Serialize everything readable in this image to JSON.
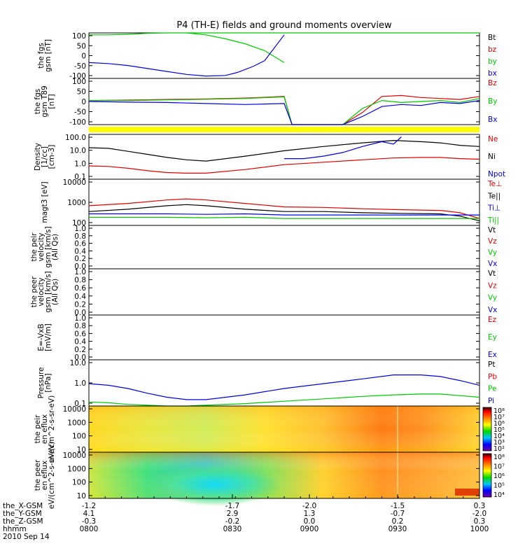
{
  "title": "P4 (TH-E) fields and ground moments overview",
  "colors": {
    "black": "#000000",
    "red": "#e00000",
    "green": "#00c800",
    "blue": "#0000e0"
  },
  "colorbar_ticks": {
    "eflux_i": [
      "10⁸",
      "10⁷",
      "10⁶",
      "10⁵",
      "10⁴",
      "10³",
      "10²"
    ],
    "eflux_e": [
      "10⁸",
      "10⁷",
      "10⁶",
      "10⁵",
      "10⁴"
    ]
  },
  "x_ticks": {
    "rows": [
      {
        "label": "the_X-GSM",
        "values": [
          "-1.2",
          "-1.7",
          "-2.0",
          "-1.5",
          "0.3"
        ]
      },
      {
        "label": "the_Y-GSM",
        "values": [
          "4.1",
          "2.9",
          "1.3",
          "-0.7",
          "-2.0"
        ]
      },
      {
        "label": "the_Z-GSM",
        "values": [
          "-0.3",
          "-0.2",
          "0.0",
          "0.2",
          "0.3"
        ]
      },
      {
        "label": "hhmm",
        "values": [
          "0800",
          "0830",
          "0900",
          "0930",
          "1000"
        ]
      }
    ],
    "date": "2010 Sep 14"
  },
  "chart_data": [
    {
      "type": "line",
      "ylabel": "the fgs gsm [nT]",
      "yticks": [
        "100",
        "50",
        "0",
        "-50",
        "-100"
      ],
      "ylim": [
        -120,
        110
      ],
      "legend": [
        {
          "name": "Bt",
          "color": "black"
        },
        {
          "name": "bz",
          "color": "red"
        },
        {
          "name": "by",
          "color": "green"
        },
        {
          "name": "bx",
          "color": "blue"
        }
      ],
      "series": [
        {
          "name": "by",
          "color": "green",
          "x": [
            0,
            0.05,
            0.1,
            0.15,
            0.2,
            0.25,
            0.28,
            0.32,
            0.4,
            0.55,
            0.62,
            0.7,
            0.75,
            0.8,
            0.85,
            0.9,
            0.98,
            1.0
          ],
          "y": [
            100,
            100,
            103,
            108,
            110,
            110,
            110,
            110,
            110,
            110,
            110,
            110,
            110,
            110,
            110,
            110,
            110,
            110
          ]
        },
        {
          "name": "by",
          "color": "green",
          "x": [
            0.25,
            0.3,
            0.35,
            0.4,
            0.45,
            0.5
          ],
          "y": [
            110,
            100,
            80,
            55,
            20,
            -40
          ]
        },
        {
          "name": "bx",
          "color": "blue",
          "x": [
            0,
            0.05,
            0.1,
            0.15,
            0.2,
            0.25,
            0.3,
            0.35,
            0.38,
            0.42,
            0.45,
            0.5
          ],
          "y": [
            -40,
            -45,
            -55,
            -70,
            -85,
            -100,
            -108,
            -105,
            -90,
            -60,
            -30,
            100
          ]
        }
      ]
    },
    {
      "type": "line",
      "ylabel": "the fgs gsm T89 [nT]",
      "yticks": [
        "100",
        "50",
        "0",
        "-50",
        "-100"
      ],
      "ylim": [
        -120,
        110
      ],
      "legend": [
        {
          "name": "Bz",
          "color": "red"
        },
        {
          "name": "By",
          "color": "green"
        },
        {
          "name": "Bx",
          "color": "blue"
        }
      ],
      "series": [
        {
          "name": "Bz",
          "color": "red",
          "x": [
            0,
            0.1,
            0.2,
            0.3,
            0.4,
            0.5,
            0.52,
            0.65,
            0.7,
            0.75,
            0.8,
            0.85,
            0.9,
            0.95,
            1.0
          ],
          "y": [
            0,
            2,
            5,
            8,
            12,
            20,
            -120,
            -120,
            -60,
            20,
            25,
            15,
            10,
            5,
            20
          ]
        },
        {
          "name": "By",
          "color": "green",
          "x": [
            0,
            0.1,
            0.2,
            0.3,
            0.4,
            0.5,
            0.52,
            0.65,
            0.7,
            0.75,
            0.8,
            0.85,
            0.9,
            0.95,
            1.0
          ],
          "y": [
            0,
            0,
            3,
            6,
            10,
            18,
            -120,
            -120,
            -40,
            0,
            -10,
            -5,
            0,
            -10,
            10
          ]
        },
        {
          "name": "Bx",
          "color": "blue",
          "x": [
            0,
            0.1,
            0.2,
            0.3,
            0.4,
            0.5,
            0.52,
            0.65,
            0.7,
            0.75,
            0.8,
            0.85,
            0.9,
            0.95,
            1.0
          ],
          "y": [
            -5,
            -8,
            -10,
            -15,
            -20,
            -15,
            -120,
            -120,
            -80,
            -30,
            -20,
            -25,
            -10,
            -15,
            0
          ]
        }
      ]
    },
    {
      "type": "line",
      "ylabel": "Density [1/cc] [cm-3]",
      "log": true,
      "yticks": [
        "100.0",
        "10.0",
        "1.0",
        "0.1"
      ],
      "ylim": [
        -1.5,
        2.2
      ],
      "legend": [
        {
          "name": "Ne",
          "color": "red"
        },
        {
          "name": "Ni",
          "color": "black"
        },
        {
          "name": "Npot",
          "color": "blue"
        }
      ],
      "series": [
        {
          "name": "Ni",
          "color": "black",
          "x": [
            0,
            0.05,
            0.1,
            0.15,
            0.2,
            0.25,
            0.3,
            0.4,
            0.5,
            0.6,
            0.7,
            0.78,
            0.85,
            0.9,
            0.95,
            1.0
          ],
          "y": [
            1.1,
            1.05,
            0.8,
            0.55,
            0.3,
            0.1,
            0.0,
            0.4,
            0.85,
            1.2,
            1.5,
            1.7,
            1.6,
            1.5,
            1.3,
            1.2
          ]
        },
        {
          "name": "Ne",
          "color": "red",
          "x": [
            0,
            0.05,
            0.1,
            0.15,
            0.2,
            0.25,
            0.3,
            0.4,
            0.5,
            0.6,
            0.7,
            0.78,
            0.85,
            0.9,
            0.95,
            1.0
          ],
          "y": [
            -0.4,
            -0.45,
            -0.6,
            -0.8,
            -0.95,
            -1.0,
            -1.0,
            -0.7,
            -0.3,
            -0.1,
            0.1,
            0.25,
            0.3,
            0.3,
            0.2,
            0.15
          ]
        },
        {
          "name": "Npot",
          "color": "blue",
          "x": [
            0.5,
            0.55,
            0.6,
            0.65,
            0.7,
            0.75,
            0.78,
            0.8
          ],
          "y": [
            0.2,
            0.2,
            0.4,
            0.7,
            1.2,
            1.6,
            1.4,
            2.0
          ]
        }
      ]
    },
    {
      "type": "line",
      "ylabel": "magt3 [eV]",
      "log": true,
      "yticks": [
        "10000",
        "1000",
        "100"
      ],
      "ylim": [
        2,
        4
      ],
      "legend": [
        {
          "name": "Te⊥",
          "color": "red"
        },
        {
          "name": "Te||",
          "color": "black"
        },
        {
          "name": "Ti⊥",
          "color": "blue"
        },
        {
          "name": "Ti||",
          "color": "green"
        }
      ],
      "series": [
        {
          "name": "Te⊥",
          "color": "red",
          "x": [
            0,
            0.1,
            0.2,
            0.25,
            0.3,
            0.4,
            0.5,
            0.6,
            0.7,
            0.8,
            0.9,
            0.95,
            1.0
          ],
          "y": [
            2.85,
            2.95,
            3.1,
            3.15,
            3.1,
            2.95,
            2.8,
            2.78,
            2.72,
            2.68,
            2.65,
            2.55,
            2.3
          ]
        },
        {
          "name": "Te||",
          "color": "black",
          "x": [
            0,
            0.1,
            0.2,
            0.25,
            0.3,
            0.4,
            0.5,
            0.6,
            0.7,
            0.8,
            0.9,
            0.95,
            1.0
          ],
          "y": [
            2.6,
            2.7,
            2.85,
            2.9,
            2.85,
            2.7,
            2.6,
            2.6,
            2.55,
            2.52,
            2.5,
            2.4,
            2.2
          ]
        },
        {
          "name": "Ti⊥",
          "color": "blue",
          "x": [
            0,
            0.1,
            0.2,
            0.3,
            0.4,
            0.5,
            0.6,
            0.7,
            0.8,
            0.9,
            1.0
          ],
          "y": [
            2.5,
            2.5,
            2.5,
            2.48,
            2.5,
            2.45,
            2.45,
            2.45,
            2.45,
            2.45,
            2.45
          ]
        },
        {
          "name": "Ti||",
          "color": "green",
          "x": [
            0,
            0.1,
            0.2,
            0.3,
            0.4,
            0.5,
            0.6,
            0.7,
            0.8,
            0.9,
            1.0
          ],
          "y": [
            2.35,
            2.35,
            2.35,
            2.33,
            2.35,
            2.3,
            2.3,
            2.3,
            2.3,
            2.3,
            2.3
          ]
        }
      ]
    },
    {
      "type": "line",
      "ylabel": "the peir velocity gsm [km/s] (All Qs)",
      "yticks": [
        "1.0",
        "0.8",
        "0.6",
        "0.4",
        "0.2",
        "0.0"
      ],
      "ylim": [
        0,
        1
      ],
      "legend": [
        {
          "name": "Vt",
          "color": "black"
        },
        {
          "name": "Vz",
          "color": "red"
        },
        {
          "name": "Vy",
          "color": "green"
        },
        {
          "name": "Vx",
          "color": "blue"
        }
      ],
      "series": []
    },
    {
      "type": "line",
      "ylabel": "the peer velocity gsm [km/s] (All Qs)",
      "yticks": [
        "1.0",
        "0.8",
        "0.6",
        "0.4",
        "0.2",
        "0.0"
      ],
      "ylim": [
        0,
        1
      ],
      "legend": [
        {
          "name": "Vt",
          "color": "black"
        },
        {
          "name": "Vz",
          "color": "red"
        },
        {
          "name": "Vy",
          "color": "green"
        },
        {
          "name": "Vx",
          "color": "blue"
        }
      ],
      "series": []
    },
    {
      "type": "line",
      "ylabel": "E=-VxB [mV/m]",
      "yticks": [
        "1.0",
        "0.8",
        "0.6",
        "0.4",
        "0.2",
        "0.0"
      ],
      "ylim": [
        0,
        1
      ],
      "legend": [
        {
          "name": "Ez",
          "color": "red"
        },
        {
          "name": "Ey",
          "color": "green"
        },
        {
          "name": "Ex",
          "color": "blue"
        }
      ],
      "series": []
    },
    {
      "type": "line",
      "ylabel": "Pressure [nPa]",
      "log": true,
      "yticks": [
        "10.0",
        "1.0",
        "0.1"
      ],
      "ylim": [
        -1.6,
        1.3
      ],
      "legend": [
        {
          "name": "Pt",
          "color": "black"
        },
        {
          "name": "Pb",
          "color": "red"
        },
        {
          "name": "Pe",
          "color": "green"
        },
        {
          "name": "Pi",
          "color": "blue"
        }
      ],
      "series": [
        {
          "name": "Pi",
          "color": "blue",
          "x": [
            0,
            0.05,
            0.1,
            0.15,
            0.2,
            0.25,
            0.3,
            0.4,
            0.5,
            0.6,
            0.7,
            0.78,
            0.85,
            0.9,
            0.95,
            1.0
          ],
          "y": [
            -0.2,
            -0.3,
            -0.5,
            -0.8,
            -1.05,
            -1.2,
            -1.2,
            -0.9,
            -0.5,
            -0.2,
            0.1,
            0.35,
            0.35,
            0.25,
            0.0,
            -0.3
          ]
        },
        {
          "name": "Pe",
          "color": "green",
          "x": [
            0,
            0.05,
            0.1,
            0.15,
            0.2,
            0.25,
            0.3,
            0.4,
            0.5,
            0.6,
            0.7,
            0.78,
            0.85,
            0.9,
            0.95,
            1.0
          ],
          "y": [
            -1.35,
            -1.4,
            -1.5,
            -1.55,
            -1.6,
            -1.6,
            -1.55,
            -1.45,
            -1.3,
            -1.15,
            -1.0,
            -0.9,
            -0.85,
            -0.85,
            -0.95,
            -1.05
          ]
        }
      ]
    },
    {
      "type": "heatmap",
      "ylabel": "the peir en eflux eV/(cm^2-s-sr-eV)",
      "yticks": [
        "10000",
        "1000",
        "100",
        "10"
      ]
    },
    {
      "type": "heatmap",
      "ylabel": "the peer en eflux eV/(cm^2-s-sr-eV)",
      "yticks": [
        "10000",
        "1000",
        "100",
        "10"
      ]
    }
  ]
}
